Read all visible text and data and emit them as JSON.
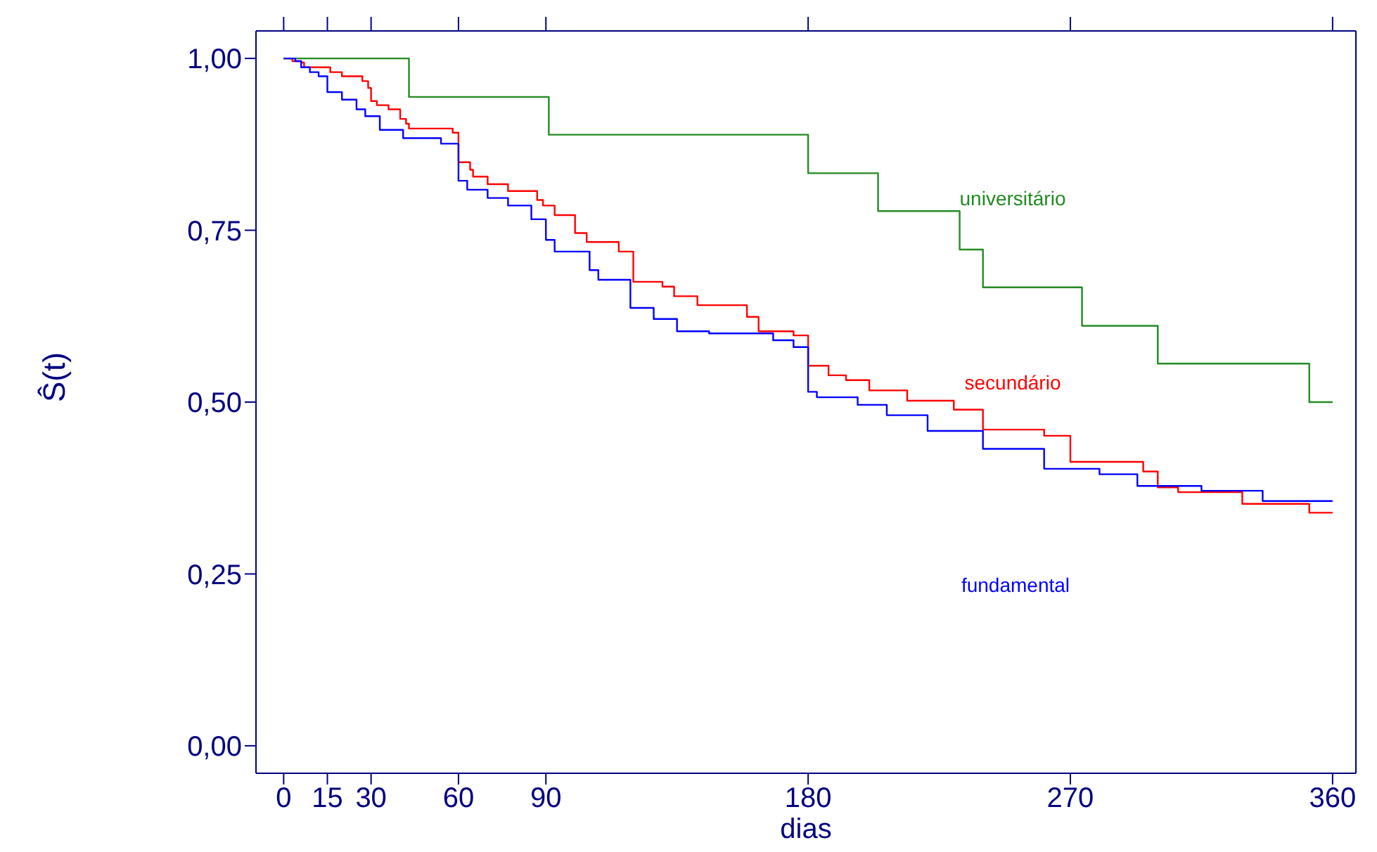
{
  "chart_data": {
    "type": "step",
    "xlabel": "dias",
    "ylabel": "Ŝ(t)",
    "xlim": [
      -9.5,
      368
    ],
    "xticks": [
      0,
      15,
      30,
      60,
      90,
      180,
      270,
      360
    ],
    "ylim": [
      -0.04,
      1.04
    ],
    "yticks": [
      {
        "value": 0,
        "label": "0,00"
      },
      {
        "value": 0.25,
        "label": "0,25"
      },
      {
        "value": 0.5,
        "label": "0,50"
      },
      {
        "value": 0.75,
        "label": "0,75"
      },
      {
        "value": 1,
        "label": "1,00"
      }
    ],
    "marker": "none",
    "line_style": "solid",
    "series": [
      {
        "name": "universitário",
        "color": "#228b22",
        "x": [
          0,
          43,
          91,
          180,
          204,
          232,
          240,
          274,
          300,
          352,
          360
        ],
        "values": [
          1,
          0.944,
          0.889,
          0.833,
          0.778,
          0.722,
          0.667,
          0.611,
          0.556,
          0.5,
          0.5
        ]
      },
      {
        "name": "secundário",
        "color": "#ff0000",
        "x": [
          0,
          3,
          6,
          7,
          16,
          20,
          27,
          29,
          30,
          32,
          36,
          40,
          42,
          43,
          58,
          60,
          64,
          65,
          70,
          77,
          87,
          89,
          93,
          100,
          104,
          115,
          120,
          130,
          134,
          142,
          159,
          163,
          175,
          180,
          187,
          193,
          201,
          214,
          230,
          240,
          261,
          270,
          295,
          300,
          307,
          329,
          352,
          360
        ],
        "values": [
          1,
          0.996,
          0.994,
          0.987,
          0.98,
          0.974,
          0.967,
          0.957,
          0.938,
          0.932,
          0.926,
          0.912,
          0.905,
          0.898,
          0.892,
          0.849,
          0.838,
          0.828,
          0.817,
          0.807,
          0.794,
          0.786,
          0.772,
          0.746,
          0.733,
          0.719,
          0.675,
          0.668,
          0.654,
          0.641,
          0.624,
          0.603,
          0.597,
          0.553,
          0.539,
          0.532,
          0.517,
          0.502,
          0.489,
          0.46,
          0.451,
          0.413,
          0.399,
          0.376,
          0.369,
          0.352,
          0.339,
          0.339
        ]
      },
      {
        "name": "fundamental",
        "color": "#0000ff",
        "x": [
          0,
          4,
          6,
          9,
          12,
          15,
          20,
          25,
          28,
          33,
          41,
          54,
          60,
          63,
          70,
          77,
          85,
          90,
          93,
          105,
          108,
          119,
          127,
          135,
          146,
          168,
          175,
          180,
          183,
          197,
          207,
          221,
          240,
          261,
          280,
          293,
          315,
          336,
          360
        ],
        "values": [
          1,
          0.996,
          0.987,
          0.98,
          0.974,
          0.951,
          0.94,
          0.926,
          0.916,
          0.896,
          0.884,
          0.876,
          0.822,
          0.809,
          0.797,
          0.786,
          0.766,
          0.736,
          0.719,
          0.692,
          0.678,
          0.637,
          0.621,
          0.603,
          0.6,
          0.59,
          0.58,
          0.515,
          0.507,
          0.496,
          0.481,
          0.458,
          0.432,
          0.403,
          0.395,
          0.378,
          0.371,
          0.356,
          0.356
        ]
      }
    ]
  }
}
